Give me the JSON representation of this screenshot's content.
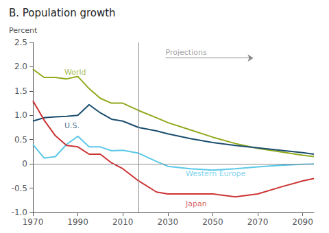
{
  "chart_data": {
    "type": "line",
    "title": "B. Population growth",
    "ylabel": "Percent",
    "x": [
      1970,
      1975,
      1980,
      1985,
      1990,
      1995,
      2000,
      2005,
      2010,
      2017,
      2025,
      2030,
      2040,
      2050,
      2060,
      2070,
      2080,
      2090,
      2095
    ],
    "series": [
      {
        "name": "World",
        "color": "#8faa1b",
        "label_x": 1984,
        "label_y": 1.88,
        "values": [
          1.95,
          1.78,
          1.78,
          1.75,
          1.8,
          1.55,
          1.35,
          1.25,
          1.25,
          1.1,
          0.95,
          0.85,
          0.7,
          0.55,
          0.42,
          0.32,
          0.25,
          0.18,
          0.15
        ]
      },
      {
        "name": "U.S.",
        "color": "#1a4d6e",
        "label_x": 1984,
        "label_y": 0.78,
        "values": [
          0.88,
          0.95,
          0.97,
          0.98,
          1.0,
          1.22,
          1.05,
          0.92,
          0.88,
          0.75,
          0.68,
          0.62,
          0.52,
          0.44,
          0.38,
          0.33,
          0.28,
          0.23,
          0.2
        ]
      },
      {
        "name": "Western Europe",
        "color": "#5bc8e8",
        "label_x": 2038,
        "label_y": -0.2,
        "values": [
          0.4,
          0.12,
          0.15,
          0.4,
          0.57,
          0.35,
          0.35,
          0.27,
          0.28,
          0.22,
          0.05,
          -0.05,
          -0.1,
          -0.13,
          -0.1,
          -0.06,
          -0.03,
          -0.01,
          0.0
        ]
      },
      {
        "name": "Japan",
        "color": "#cc3333",
        "label_x": 2038,
        "label_y": -0.82,
        "values": [
          1.3,
          0.9,
          0.58,
          0.38,
          0.35,
          0.2,
          0.2,
          0.02,
          -0.1,
          -0.35,
          -0.58,
          -0.62,
          -0.62,
          -0.62,
          -0.68,
          -0.62,
          -0.48,
          -0.35,
          -0.3
        ]
      }
    ],
    "annotations": [
      {
        "text": "Projections",
        "x": 2029,
        "y": 2.38
      }
    ],
    "arrow": {
      "x": [
        2029,
        2068
      ],
      "y": 2.18
    },
    "vline": 2017,
    "hline": 0,
    "xlim": [
      1970,
      2095
    ],
    "xticks": [
      1970,
      1990,
      2010,
      2030,
      2050,
      2070,
      2090
    ],
    "ylim": [
      -1.0,
      2.5
    ],
    "yticks": [
      {
        "value": -1.0,
        "label": "-1.0"
      },
      -0.5,
      0,
      0.5,
      {
        "value": 1.0,
        "label": "1.0"
      },
      1.5,
      {
        "value": 2.0,
        "label": "2.0"
      },
      2.5
    ],
    "grid": false
  }
}
